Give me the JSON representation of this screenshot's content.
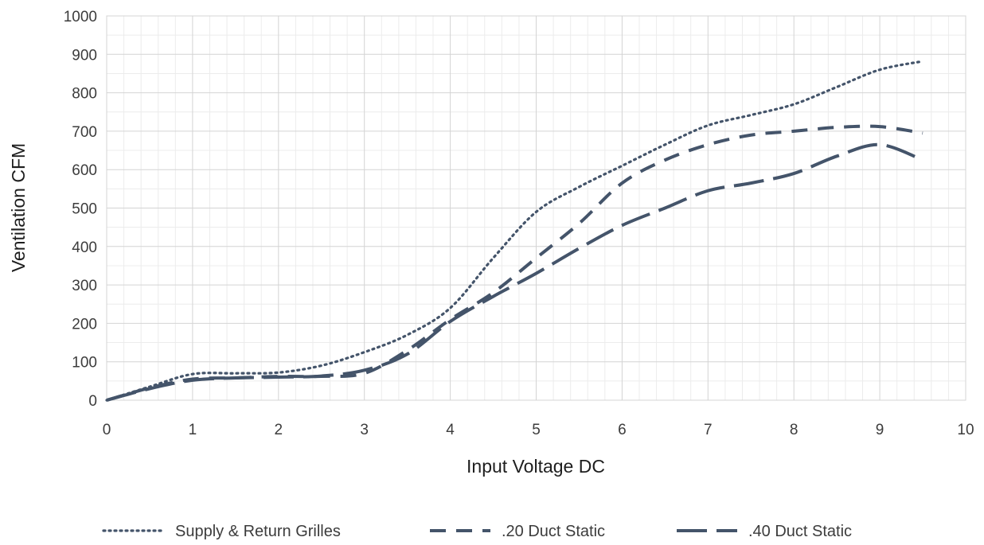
{
  "chart_data": {
    "type": "line",
    "title": "",
    "xlabel": "Input Voltage DC",
    "ylabel": "Ventilation CFM",
    "xlim": [
      0,
      10
    ],
    "ylim": [
      0,
      1000
    ],
    "x_ticks": [
      "0",
      "1",
      "2",
      "3",
      "4",
      "5",
      "6",
      "7",
      "8",
      "9",
      "10"
    ],
    "y_ticks": [
      "0",
      "100",
      "200",
      "300",
      "400",
      "500",
      "600",
      "700",
      "800",
      "900",
      "1000"
    ],
    "grid": true,
    "legend_position": "bottom",
    "line_color": "#44546a",
    "series": [
      {
        "name": "Supply & Return Grilles",
        "style": "dotted",
        "points": [
          [
            0,
            0
          ],
          [
            0.5,
            35
          ],
          [
            1,
            68
          ],
          [
            1.5,
            70
          ],
          [
            2,
            72
          ],
          [
            2.5,
            90
          ],
          [
            3,
            125
          ],
          [
            3.5,
            170
          ],
          [
            4,
            240
          ],
          [
            4.5,
            370
          ],
          [
            5,
            490
          ],
          [
            5.5,
            555
          ],
          [
            6,
            610
          ],
          [
            6.5,
            665
          ],
          [
            7,
            715
          ],
          [
            7.5,
            742
          ],
          [
            8,
            770
          ],
          [
            8.5,
            815
          ],
          [
            9,
            860
          ],
          [
            9.5,
            882
          ]
        ]
      },
      {
        "name": ".20 Duct Static",
        "style": "dashed",
        "points": [
          [
            0,
            0
          ],
          [
            0.5,
            32
          ],
          [
            1,
            55
          ],
          [
            1.5,
            58
          ],
          [
            2,
            62
          ],
          [
            2.5,
            62
          ],
          [
            3,
            70
          ],
          [
            3.5,
            130
          ],
          [
            4,
            210
          ],
          [
            4.5,
            280
          ],
          [
            5,
            370
          ],
          [
            5.5,
            460
          ],
          [
            6,
            565
          ],
          [
            6.5,
            625
          ],
          [
            7,
            665
          ],
          [
            7.5,
            690
          ],
          [
            8,
            700
          ],
          [
            8.5,
            710
          ],
          [
            9,
            712
          ],
          [
            9.5,
            695
          ]
        ]
      },
      {
        "name": ".40 Duct Static",
        "style": "longdash",
        "points": [
          [
            0,
            0
          ],
          [
            0.5,
            30
          ],
          [
            1,
            52
          ],
          [
            1.5,
            58
          ],
          [
            2,
            60
          ],
          [
            2.5,
            63
          ],
          [
            3,
            78
          ],
          [
            3.5,
            120
          ],
          [
            4,
            205
          ],
          [
            4.5,
            270
          ],
          [
            5,
            330
          ],
          [
            5.5,
            395
          ],
          [
            6,
            455
          ],
          [
            6.5,
            500
          ],
          [
            7,
            545
          ],
          [
            7.5,
            565
          ],
          [
            8,
            590
          ],
          [
            8.5,
            635
          ],
          [
            9,
            665
          ],
          [
            9.5,
            625
          ]
        ]
      }
    ]
  }
}
